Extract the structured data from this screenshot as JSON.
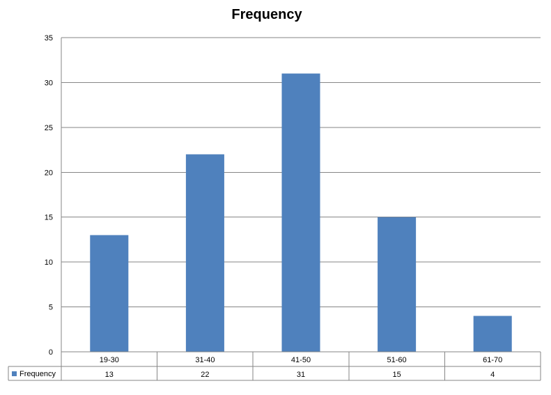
{
  "chart_data": {
    "type": "bar",
    "title": "Frequency",
    "xlabel": "",
    "ylabel": "",
    "categories": [
      "19-30",
      "31-40",
      "41-50",
      "51-60",
      "61-70"
    ],
    "series": [
      {
        "name": "Frequency",
        "values": [
          13,
          22,
          31,
          15,
          4
        ]
      }
    ],
    "ylim": [
      0,
      35
    ],
    "yticks": [
      0,
      5,
      10,
      15,
      20,
      25,
      30,
      35
    ],
    "grid": true,
    "legend": "data-table-left",
    "data_table": true,
    "bar_color": "#4f81bd"
  }
}
